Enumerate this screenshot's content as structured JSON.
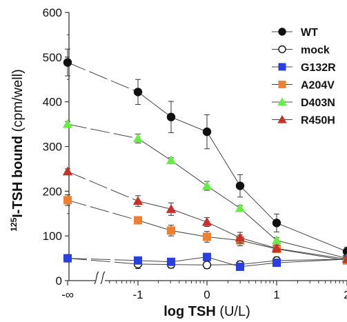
{
  "chart_data": {
    "type": "line",
    "xlabel_bold": "log TSH",
    "xlabel_unit": " (U/L)",
    "ylabel_sup": "125",
    "ylabel_bold": "I-TSH bound",
    "ylabel_unit": " (cpm/well)",
    "ylim": [
      0,
      600
    ],
    "y_ticks": [
      0,
      100,
      200,
      300,
      400,
      500,
      600
    ],
    "x_ticks": [
      {
        "value": -2.7,
        "label": "-∞"
      },
      {
        "value": -1,
        "label": "-1"
      },
      {
        "value": 0,
        "label": "0"
      },
      {
        "value": 1,
        "label": "1"
      },
      {
        "value": 2,
        "label": "2"
      }
    ],
    "x_break": true,
    "legend_position": "top-right",
    "series": [
      {
        "name": "WT",
        "marker": "circle",
        "filled": true,
        "color": "#111111",
        "x": [
          -2.7,
          -1,
          -0.5,
          0,
          0.5,
          1,
          2
        ],
        "y": [
          488,
          422,
          366,
          333,
          212,
          129,
          65
        ],
        "err": [
          30,
          28,
          35,
          38,
          25,
          20,
          10
        ]
      },
      {
        "name": "mock",
        "marker": "circle",
        "filled": false,
        "color": "#111111",
        "x": [
          -2.7,
          -1,
          -0.5,
          0,
          0.5,
          1,
          2
        ],
        "y": [
          50,
          37,
          36,
          35,
          36,
          45,
          48
        ],
        "err": [
          8,
          10,
          8,
          8,
          8,
          8,
          6
        ]
      },
      {
        "name": "G132R",
        "marker": "square",
        "filled": true,
        "color": "#2a3fe0",
        "x": [
          -2.7,
          -1,
          -0.5,
          0,
          0.5,
          1,
          2
        ],
        "y": [
          50,
          45,
          42,
          53,
          31,
          40,
          48
        ],
        "err": [
          6,
          6,
          6,
          6,
          5,
          5,
          5
        ]
      },
      {
        "name": "A204V",
        "marker": "square",
        "filled": true,
        "color": "#f08030",
        "x": [
          -2.7,
          -1,
          -0.5,
          0,
          0.5,
          1,
          2
        ],
        "y": [
          180,
          135,
          112,
          98,
          90,
          71,
          45
        ],
        "err": [
          12,
          8,
          12,
          12,
          12,
          8,
          5
        ]
      },
      {
        "name": "D403N",
        "marker": "triangle",
        "filled": true,
        "color": "#66ee44",
        "x": [
          -2.7,
          -1,
          -0.5,
          0,
          0.5,
          1,
          2
        ],
        "y": [
          350,
          318,
          269,
          212,
          162,
          90,
          50
        ],
        "err": [
          6,
          10,
          6,
          10,
          6,
          6,
          5
        ]
      },
      {
        "name": "R450H",
        "marker": "triangle",
        "filled": true,
        "color": "#c8302a",
        "x": [
          -2.7,
          -1,
          -0.5,
          0,
          0.5,
          1,
          2
        ],
        "y": [
          244,
          178,
          160,
          131,
          96,
          72,
          48
        ],
        "err": [
          6,
          12,
          14,
          10,
          12,
          8,
          5
        ]
      }
    ]
  }
}
